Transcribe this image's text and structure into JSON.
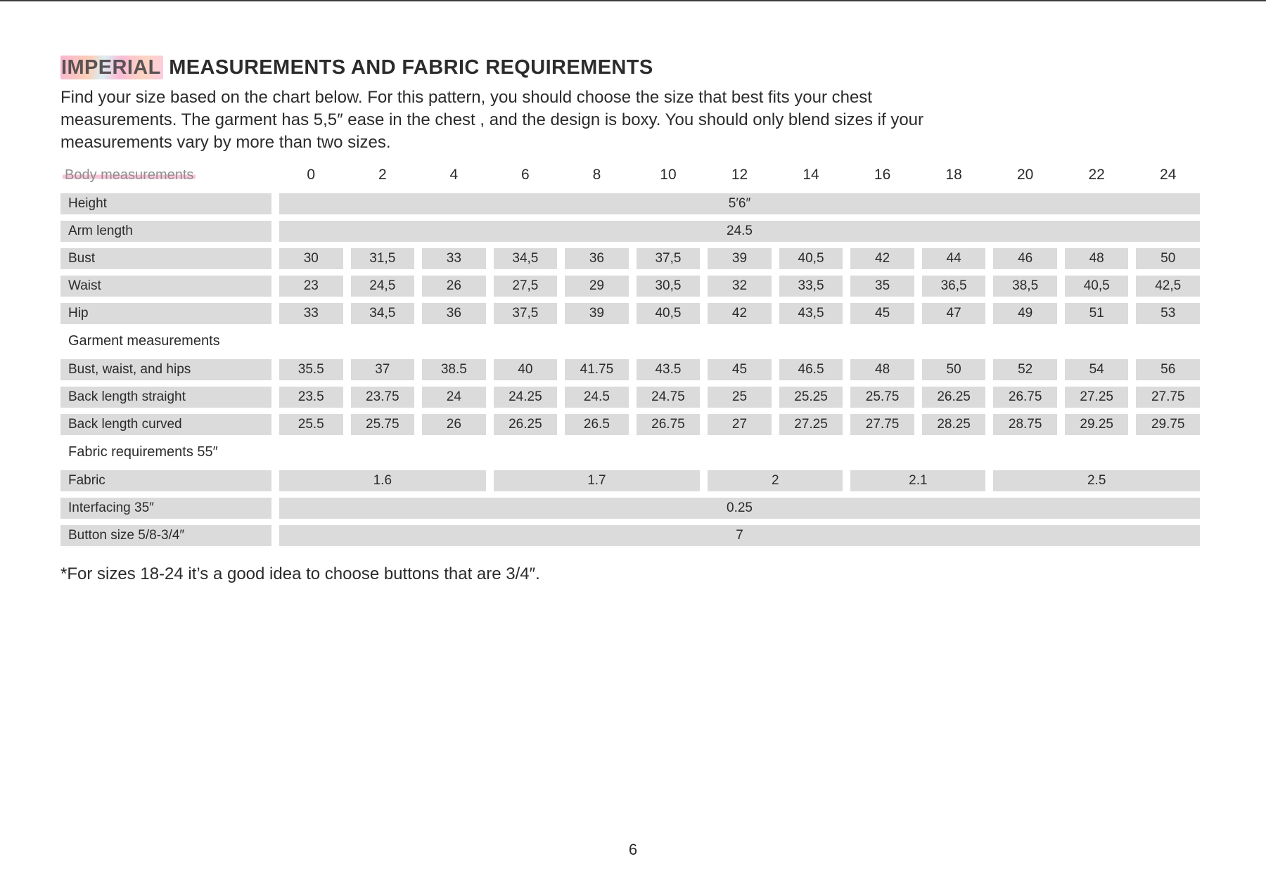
{
  "page": {
    "title_highlight": "IMPERIAL",
    "title_rest": " MEASUREMENTS AND FABRIC REQUIREMENTS",
    "intro_lines": [
      "Find your size based on the chart below. For this pattern, you should choose the size that best fits your chest",
      "measurements. The garment has 5,5″ ease in the chest , and the design is boxy. You should only blend sizes if your",
      "measurements vary by more than two sizes."
    ],
    "footnote": "*For sizes 18-24 it’s a good idea to choose buttons that are 3/4″.",
    "page_number": "6"
  },
  "colors": {
    "bar_gray": "#dbdbdb",
    "highlight_pink": "#f78dba",
    "highlight_orange": "#faa678",
    "muted_gray": "#8f8f8f"
  },
  "table": {
    "header": {
      "label": "Body measurements",
      "sizes": [
        "0",
        "2",
        "4",
        "6",
        "8",
        "10",
        "12",
        "14",
        "16",
        "18",
        "20",
        "22",
        "24"
      ]
    },
    "rows": [
      {
        "type": "merged",
        "label": "Height",
        "value": "5′6″"
      },
      {
        "type": "merged",
        "label": "Arm length",
        "value": "24.5"
      },
      {
        "type": "cells",
        "label": "Bust",
        "values": [
          "30",
          "31,5",
          "33",
          "34,5",
          "36",
          "37,5",
          "39",
          "40,5",
          "42",
          "44",
          "46",
          "48",
          "50"
        ]
      },
      {
        "type": "cells",
        "label": "Waist",
        "values": [
          "23",
          "24,5",
          "26",
          "27,5",
          "29",
          "30,5",
          "32",
          "33,5",
          "35",
          "36,5",
          "38,5",
          "40,5",
          "42,5"
        ]
      },
      {
        "type": "cells",
        "label": "Hip",
        "values": [
          "33",
          "34,5",
          "36",
          "37,5",
          "39",
          "40,5",
          "42",
          "43,5",
          "45",
          "47",
          "49",
          "51",
          "53"
        ]
      },
      {
        "type": "section",
        "label": "Garment measurements"
      },
      {
        "type": "cells",
        "label": "Bust, waist, and hips",
        "values": [
          "35.5",
          "37",
          "38.5",
          "40",
          "41.75",
          "43.5",
          "45",
          "46.5",
          "48",
          "50",
          "52",
          "54",
          "56"
        ]
      },
      {
        "type": "cells",
        "label": "Back length straight",
        "values": [
          "23.5",
          "23.75",
          "24",
          "24.25",
          "24.5",
          "24.75",
          "25",
          "25.25",
          "25.75",
          "26.25",
          "26.75",
          "27.25",
          "27.75"
        ]
      },
      {
        "type": "cells",
        "label": "Back length curved",
        "values": [
          "25.5",
          "25.75",
          "26",
          "26.25",
          "26.5",
          "26.75",
          "27",
          "27.25",
          "27.75",
          "28.25",
          "28.75",
          "29.25",
          "29.75"
        ]
      },
      {
        "type": "section",
        "label": "Fabric requirements 55″"
      },
      {
        "type": "spans",
        "label": "Fabric",
        "spans": [
          {
            "cols": 3,
            "value": "1.6"
          },
          {
            "cols": 3,
            "value": "1.7"
          },
          {
            "cols": 2,
            "value": "2"
          },
          {
            "cols": 2,
            "value": "2.1"
          },
          {
            "cols": 3,
            "value": "2.5"
          }
        ]
      },
      {
        "type": "merged",
        "label": "Interfacing 35″",
        "value": "0.25"
      },
      {
        "type": "merged",
        "label": "Button size 5/8-3/4″",
        "value": "7"
      }
    ]
  }
}
